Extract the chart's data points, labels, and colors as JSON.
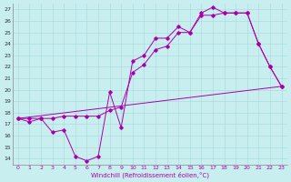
{
  "xlabel": "Windchill (Refroidissement éolien,°C)",
  "bg_color": "#c8eef0",
  "grid_color": "#aadddd",
  "line_color": "#aa00aa",
  "xlim": [
    -0.5,
    23.5
  ],
  "ylim": [
    13.5,
    27.5
  ],
  "xticks": [
    0,
    1,
    2,
    3,
    4,
    5,
    6,
    7,
    8,
    9,
    10,
    11,
    12,
    13,
    14,
    15,
    16,
    17,
    18,
    19,
    20,
    21,
    22,
    23
  ],
  "yticks": [
    14,
    15,
    16,
    17,
    18,
    19,
    20,
    21,
    22,
    23,
    24,
    25,
    26,
    27
  ],
  "series_zigzag_x": [
    0,
    1,
    2,
    3,
    4,
    5,
    6,
    7,
    8,
    9,
    10,
    11,
    12,
    13,
    14,
    15,
    16,
    17,
    18,
    19,
    20,
    21,
    22,
    23
  ],
  "series_zigzag_y": [
    17.5,
    17.2,
    17.5,
    16.3,
    16.5,
    14.2,
    13.8,
    14.2,
    19.8,
    16.7,
    22.5,
    23.0,
    24.5,
    24.5,
    25.5,
    25.0,
    26.7,
    27.2,
    26.7,
    26.7,
    26.7,
    24.0,
    22.0,
    20.3
  ],
  "series_smooth_x": [
    0,
    1,
    2,
    3,
    4,
    5,
    6,
    7,
    8,
    9,
    10,
    11,
    12,
    13,
    14,
    15,
    16,
    17,
    18,
    19,
    20,
    21,
    22,
    23
  ],
  "series_smooth_y": [
    17.5,
    17.5,
    17.5,
    17.5,
    17.7,
    17.7,
    17.7,
    17.7,
    18.2,
    18.5,
    21.5,
    22.2,
    23.5,
    23.8,
    25.0,
    25.0,
    26.5,
    26.5,
    26.7,
    26.7,
    26.7,
    24.0,
    22.0,
    20.3
  ],
  "series_trend_x": [
    0,
    23
  ],
  "series_trend_y": [
    17.5,
    20.3
  ]
}
